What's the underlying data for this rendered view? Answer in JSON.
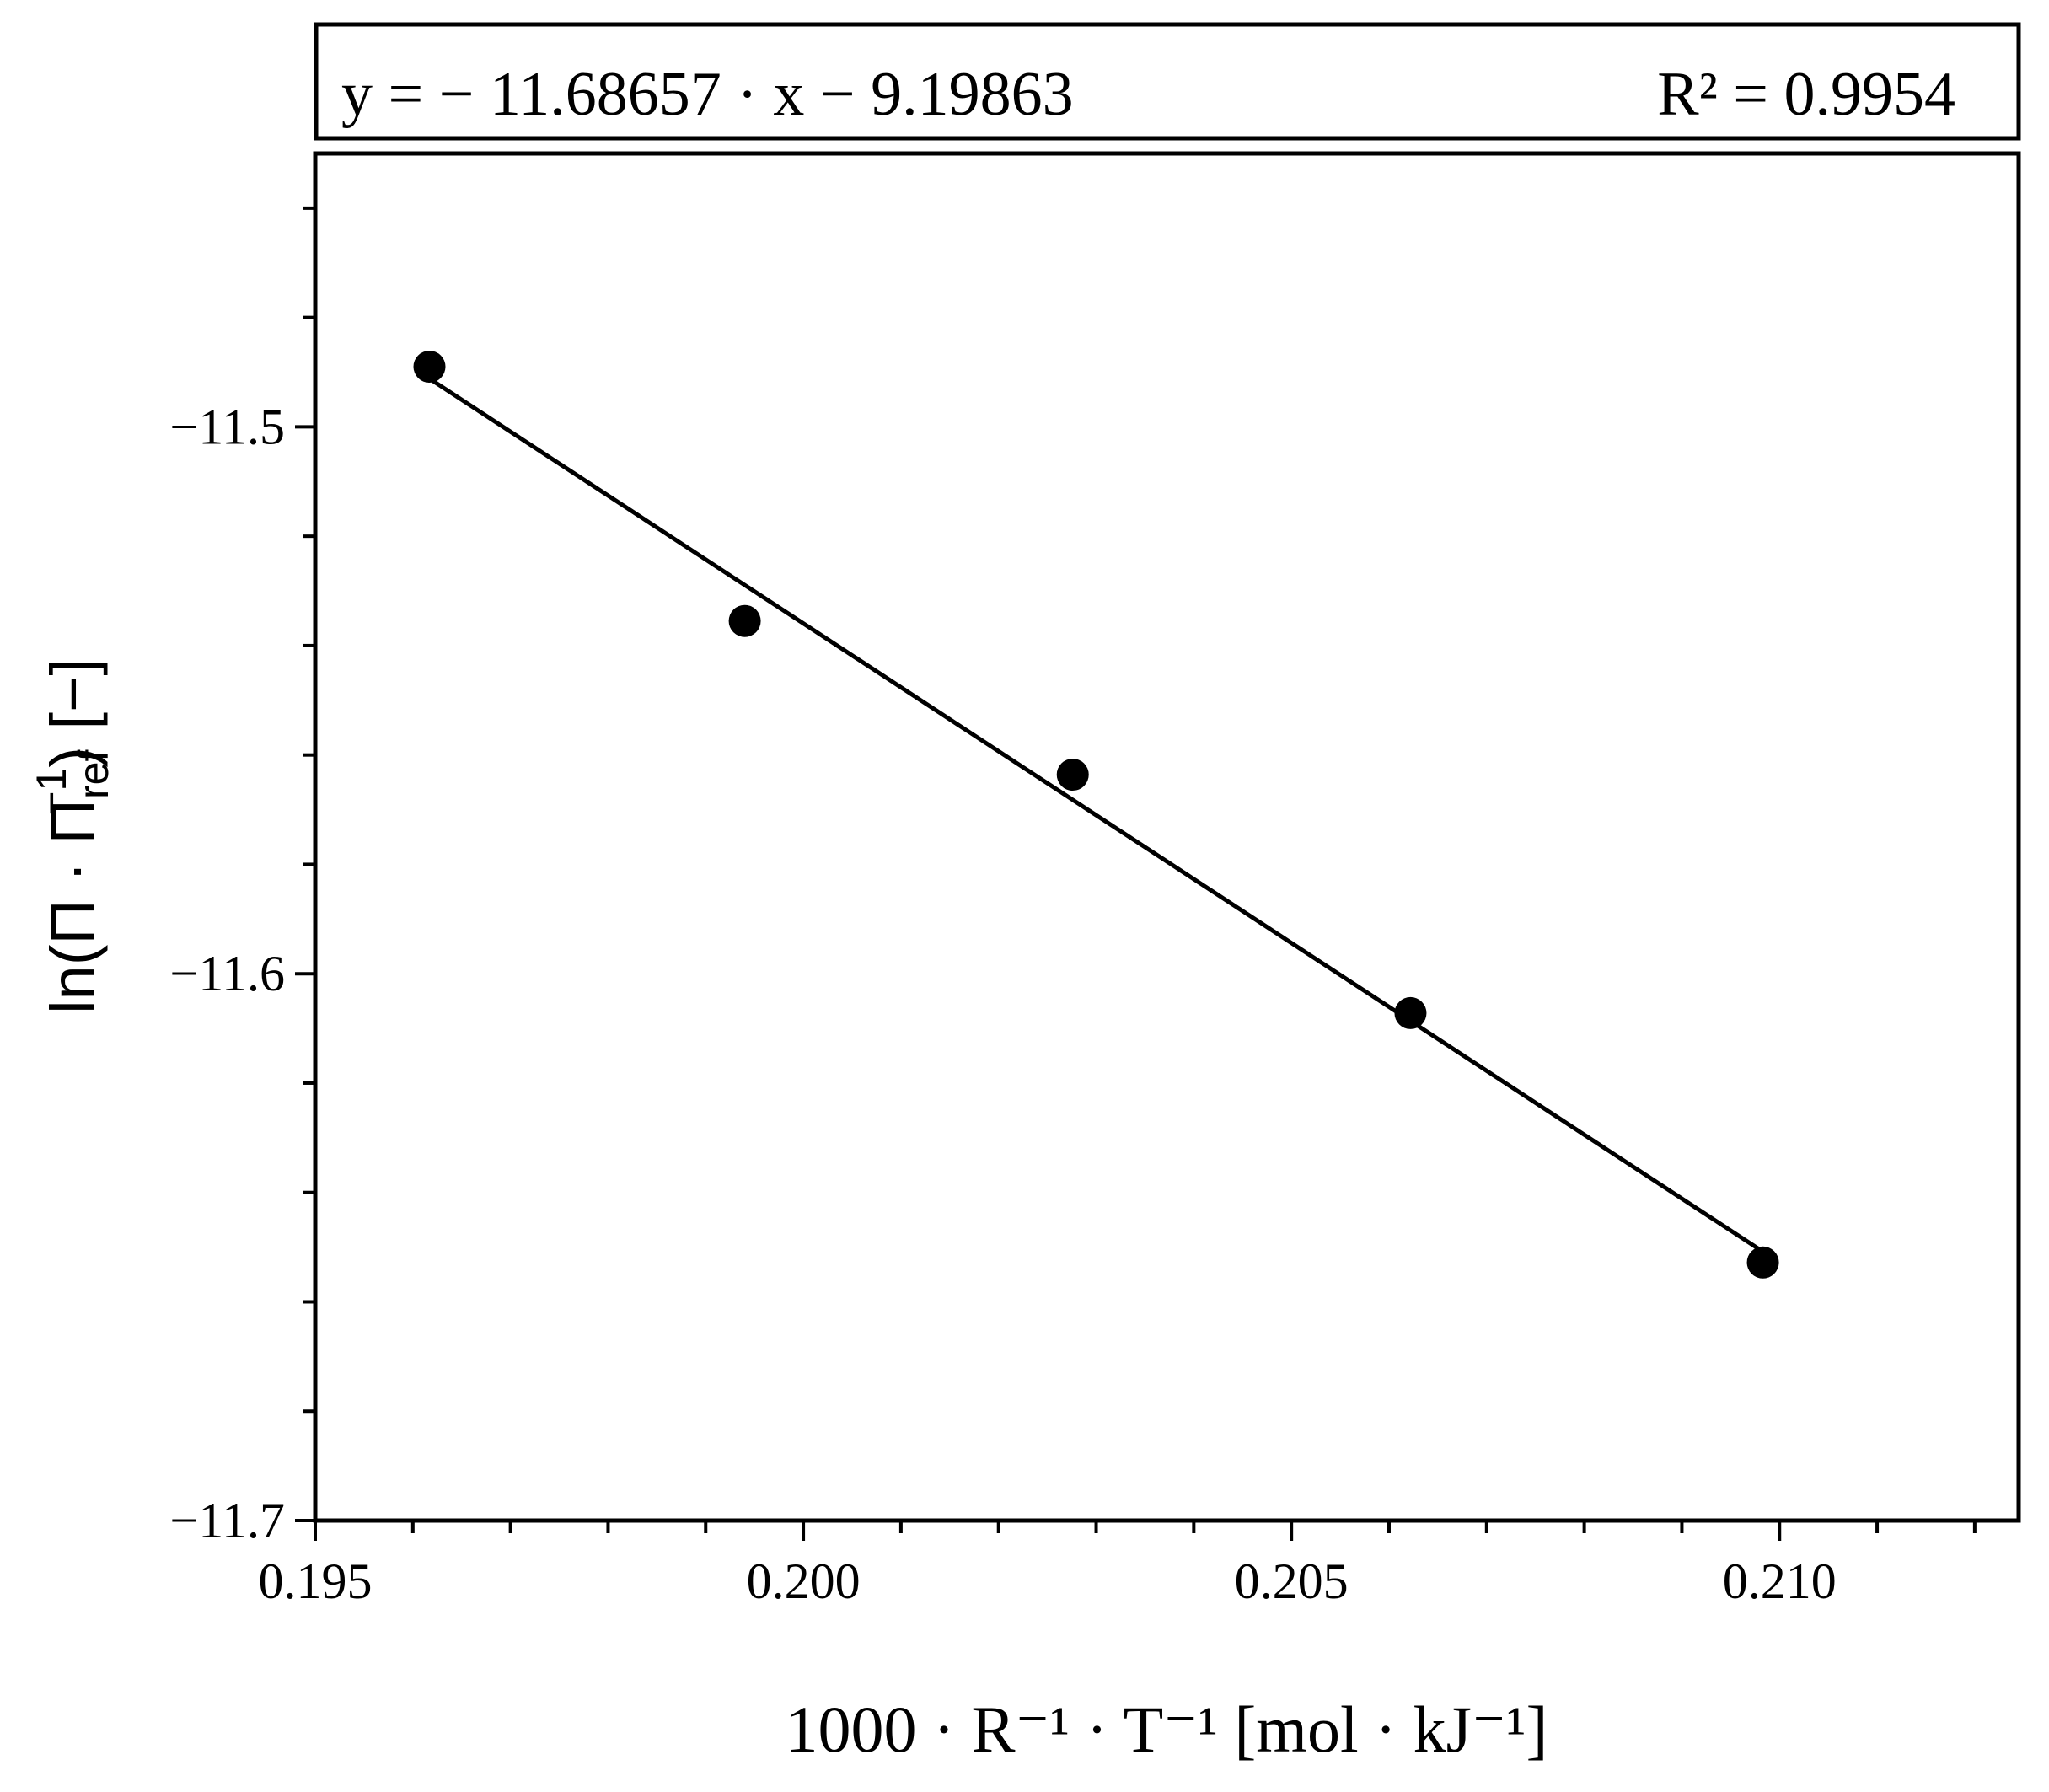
{
  "chart_data": {
    "type": "scatter",
    "equation": "y = − 11.68657 · x − 9.19863",
    "r_squared": "R² = 0.9954",
    "x_label": "1000 · R⁻¹ · T⁻¹ [mol · kJ⁻¹]",
    "y_label": {
      "main": "ln(Π · Π",
      "sub": "ref",
      "sup": "−1",
      "end": ") [−]"
    },
    "x": [
      0.19617,
      0.1994,
      0.20276,
      0.20622,
      0.20983
    ],
    "series": [
      {
        "values": [
          -11.489,
          -11.5355,
          -11.5636,
          -11.6072,
          -11.6528
        ],
        "color": "#000000"
      }
    ],
    "fit": {
      "slope": -11.68657,
      "intercept": -9.19863,
      "color": "#000000"
    },
    "xlim": [
      0.195,
      0.21245
    ],
    "ylim": [
      -11.7,
      -11.45
    ],
    "xticks": [
      0.195,
      {
        "value": 0.2,
        "label": "0.200"
      },
      0.205,
      {
        "value": 0.21,
        "label": "0.210"
      }
    ],
    "yticks": [
      {
        "value": -11.7,
        "label": "−11.7"
      },
      {
        "value": -11.6,
        "label": "−11.6"
      },
      {
        "value": -11.5,
        "label": "−11.5"
      }
    ],
    "xminor_ticks": [
      0.196,
      0.197,
      0.198,
      0.199,
      0.201,
      0.202,
      0.203,
      0.204,
      0.206,
      0.207,
      0.208,
      0.209,
      0.211,
      0.212
    ],
    "yminor_ticks": [
      -11.68,
      -11.66,
      -11.64,
      -11.62,
      -11.58,
      -11.56,
      -11.54,
      -11.52,
      -11.48,
      -11.46
    ],
    "grid": false
  }
}
